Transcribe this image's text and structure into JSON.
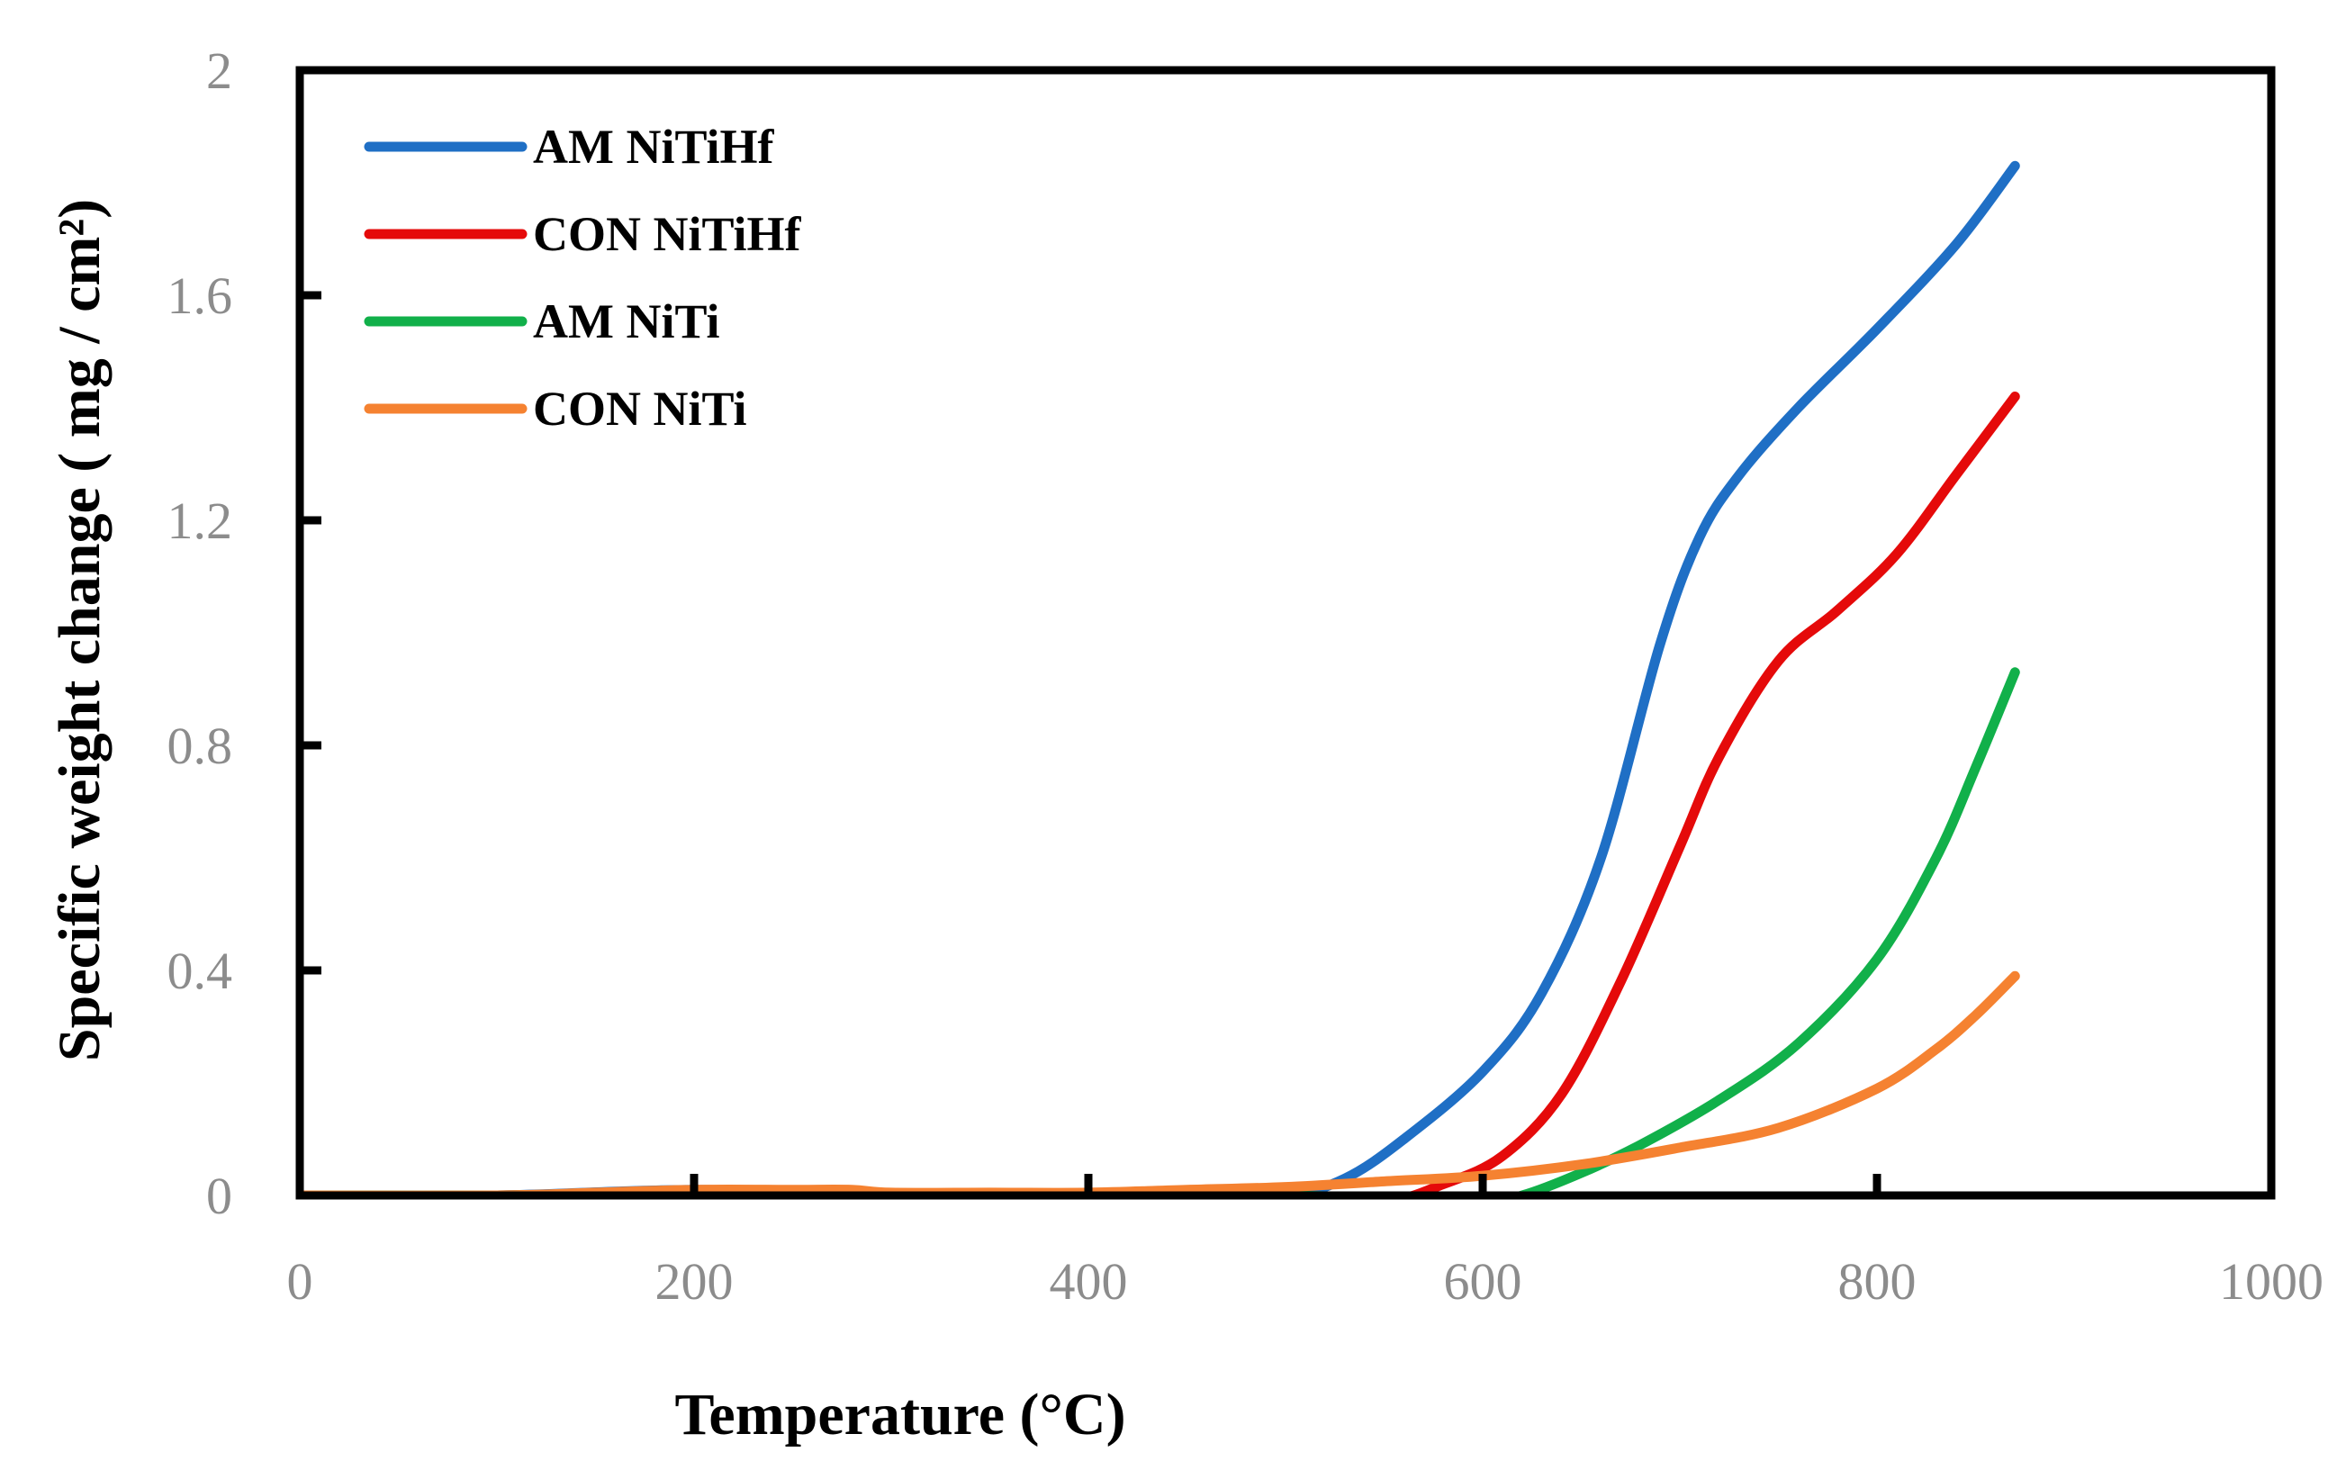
{
  "chart_data": {
    "type": "line",
    "xlabel": "Temperature (°C)",
    "ylabel": "Specific weight change ( mg / cm²)",
    "xlim": [
      0,
      1000
    ],
    "ylim": [
      0,
      2
    ],
    "x_ticks": [
      "0",
      "200",
      "400",
      "600",
      "800",
      "1000"
    ],
    "y_ticks": [
      "0",
      "0.4",
      "0.8",
      "1.2",
      "1.6",
      "2"
    ],
    "x_tick_values": [
      0,
      200,
      400,
      600,
      800,
      1000
    ],
    "y_tick_values": [
      0,
      0.4,
      0.8,
      1.2,
      1.6,
      2
    ],
    "grid": false,
    "legend_position": "top-left",
    "series": [
      {
        "name": "AM NiTiHf",
        "color": "#1f6fc5",
        "x": [
          0,
          100,
          200,
          300,
          400,
          450,
          500,
          530,
          560,
          600,
          630,
          660,
          690,
          710,
          730,
          760,
          800,
          840,
          870
        ],
        "y": [
          0,
          0,
          0.01,
          0.0,
          0.0,
          0.0,
          0.0,
          0.03,
          0.1,
          0.22,
          0.36,
          0.6,
          0.98,
          1.17,
          1.28,
          1.4,
          1.54,
          1.69,
          1.83
        ]
      },
      {
        "name": "CON NiTiHf",
        "color": "#e50a0a",
        "x": [
          0,
          100,
          200,
          300,
          400,
          500,
          550,
          580,
          610,
          640,
          670,
          700,
          720,
          750,
          780,
          810,
          840,
          870
        ],
        "y": [
          0,
          0,
          0.005,
          0.0,
          0.0,
          0.0,
          -0.01,
          0.02,
          0.07,
          0.18,
          0.38,
          0.62,
          0.78,
          0.95,
          1.04,
          1.14,
          1.28,
          1.42
        ]
      },
      {
        "name": "AM NiTi",
        "color": "#11b04a",
        "x": [
          0,
          100,
          200,
          300,
          400,
          500,
          600,
          620,
          650,
          680,
          720,
          760,
          800,
          830,
          850,
          870
        ],
        "y": [
          0,
          0,
          0.005,
          0.0,
          0.0,
          0.0,
          -0.01,
          0.0,
          0.04,
          0.09,
          0.17,
          0.27,
          0.42,
          0.6,
          0.76,
          0.93
        ]
      },
      {
        "name": "CON NiTi",
        "color": "#f58231",
        "x": [
          0,
          100,
          150,
          200,
          250,
          280,
          300,
          350,
          400,
          450,
          500,
          550,
          600,
          650,
          700,
          750,
          800,
          830,
          850,
          870
        ],
        "y": [
          0,
          0,
          0.005,
          0.01,
          0.01,
          0.01,
          0.005,
          0.005,
          0.005,
          0.01,
          0.015,
          0.025,
          0.035,
          0.055,
          0.085,
          0.12,
          0.19,
          0.26,
          0.32,
          0.39
        ]
      }
    ]
  }
}
